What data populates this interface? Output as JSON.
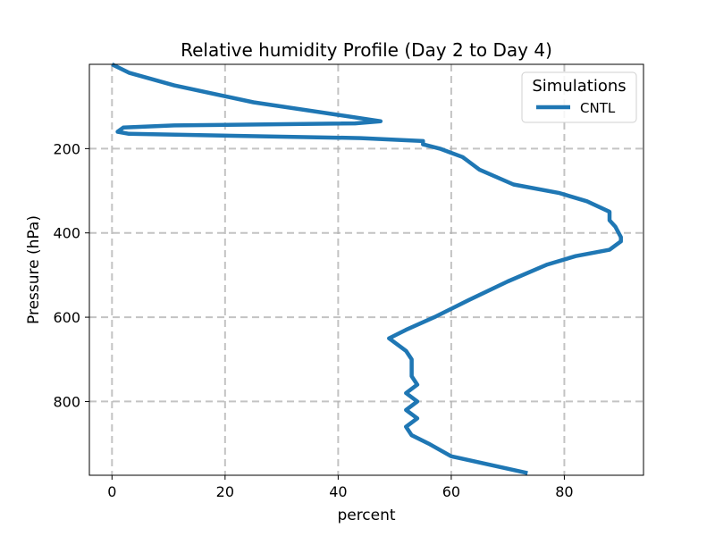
{
  "chart_data": {
    "type": "line",
    "title": "Relative humidity Profile (Day 2 to Day 4)",
    "xlabel": "percent",
    "ylabel": "Pressure (hPa)",
    "xlim": [
      -4,
      94
    ],
    "ylim": [
      975,
      0
    ],
    "y_inverted": true,
    "xticks": [
      0,
      20,
      40,
      60,
      80
    ],
    "yticks": [
      200,
      400,
      600,
      800
    ],
    "grid": true,
    "legend": {
      "title": "Simulations",
      "position": "top-right"
    },
    "colors": {
      "CNTL": "#1f77b4"
    },
    "series": [
      {
        "name": "CNTL",
        "x": [
          0,
          3,
          11,
          25,
          40,
          47.5,
          43,
          11,
          2,
          1,
          3,
          44,
          55,
          55,
          58,
          60,
          62,
          63,
          65,
          71,
          79,
          84,
          88,
          88,
          89,
          90,
          90,
          88,
          84,
          82,
          77,
          70,
          63,
          57,
          52,
          49,
          52,
          53,
          53,
          53,
          54,
          52,
          54,
          52,
          54,
          52,
          53,
          56,
          60,
          73.5
        ],
        "y": [
          0,
          20,
          50,
          90,
          120,
          135,
          140,
          145,
          150,
          160,
          165,
          175,
          182,
          190,
          200,
          210,
          220,
          230,
          250,
          285,
          305,
          325,
          350,
          370,
          385,
          410,
          420,
          440,
          450,
          455,
          475,
          515,
          560,
          600,
          630,
          650,
          680,
          700,
          720,
          740,
          760,
          780,
          800,
          820,
          840,
          860,
          880,
          900,
          930,
          970
        ]
      }
    ]
  }
}
